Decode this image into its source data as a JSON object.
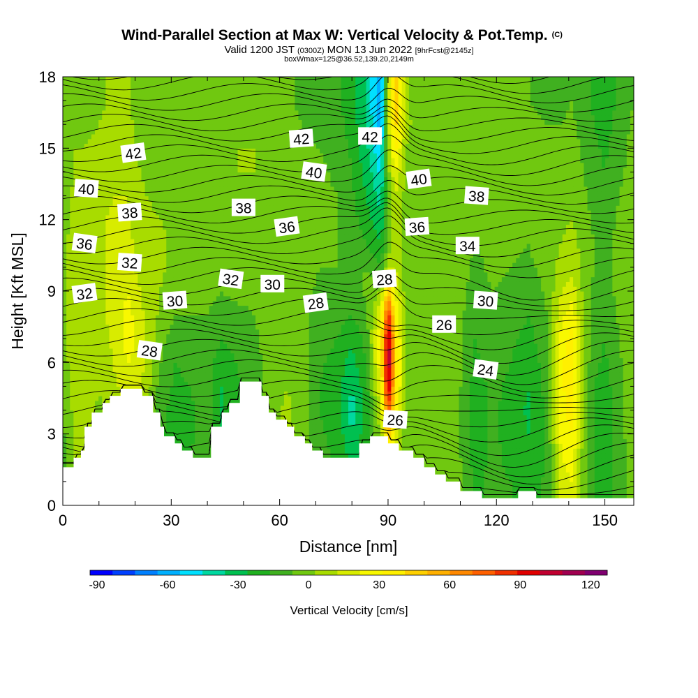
{
  "chart_data": {
    "type": "heatmap",
    "title": "Wind-Parallel Section at Max W: Vertical Velocity & Pot.Temp.",
    "title_note": "(C)",
    "subtitle_parts": [
      "Valid 1200 JST ",
      "(0300Z)",
      " MON 13 Jun 2022 ",
      "[9hrFcst@2145z]"
    ],
    "subtitle2": "boxWmax=125@36.52,139.20,2149m",
    "xlabel": "Distance [nm]",
    "ylabel": "Height [Kft MSL]",
    "xlim": [
      0,
      158
    ],
    "ylim": [
      0,
      18
    ],
    "x_ticks": [
      0,
      30,
      60,
      90,
      120,
      150
    ],
    "y_ticks": [
      0,
      3,
      6,
      9,
      12,
      15,
      18
    ],
    "colorbar": {
      "label": "Vertical Velocity [cm/s]",
      "range": [
        -90,
        130
      ],
      "step": 10,
      "tick_labels": [
        -90,
        -60,
        -30,
        0,
        30,
        60,
        90,
        120
      ],
      "colors": [
        "#0000ff",
        "#0040ff",
        "#0080ff",
        "#00b0ff",
        "#00e0ff",
        "#00d8a0",
        "#00c050",
        "#20b020",
        "#40b020",
        "#70c810",
        "#a8dc00",
        "#d8ec00",
        "#f8f800",
        "#fff000",
        "#ffd000",
        "#ffb000",
        "#ff8800",
        "#ff6000",
        "#f03000",
        "#e00000",
        "#c00030",
        "#a00050",
        "#800070"
      ]
    },
    "theta_contour_labels": [
      {
        "v": 42,
        "x": 19.5,
        "y": 14.8
      },
      {
        "v": 42,
        "x": 66,
        "y": 15.4
      },
      {
        "v": 42,
        "x": 85,
        "y": 15.5
      },
      {
        "v": 40,
        "x": 6.5,
        "y": 13.3
      },
      {
        "v": 40,
        "x": 69.5,
        "y": 14.0
      },
      {
        "v": 40,
        "x": 98.5,
        "y": 13.7
      },
      {
        "v": 38,
        "x": 18.5,
        "y": 12.3
      },
      {
        "v": 38,
        "x": 50,
        "y": 12.5
      },
      {
        "v": 38,
        "x": 114.5,
        "y": 13.0
      },
      {
        "v": 36,
        "x": 6,
        "y": 11.0
      },
      {
        "v": 36,
        "x": 62,
        "y": 11.7
      },
      {
        "v": 36,
        "x": 98,
        "y": 11.7
      },
      {
        "v": 34,
        "x": 112,
        "y": 10.9
      },
      {
        "v": 32,
        "x": 18.5,
        "y": 10.2
      },
      {
        "v": 32,
        "x": 46.5,
        "y": 9.5
      },
      {
        "v": 32,
        "x": 6,
        "y": 8.9
      },
      {
        "v": 30,
        "x": 31,
        "y": 8.6
      },
      {
        "v": 30,
        "x": 58,
        "y": 9.3
      },
      {
        "v": 30,
        "x": 117,
        "y": 8.6
      },
      {
        "v": 28,
        "x": 24,
        "y": 6.5
      },
      {
        "v": 28,
        "x": 70,
        "y": 8.5
      },
      {
        "v": 28,
        "x": 89,
        "y": 9.5
      },
      {
        "v": 26,
        "x": 105.5,
        "y": 7.6
      },
      {
        "v": 26,
        "x": 92,
        "y": 3.6
      },
      {
        "v": 24,
        "x": 117,
        "y": 5.7
      }
    ],
    "terrain_kft": [
      [
        0,
        1.6
      ],
      [
        3,
        1.6
      ],
      [
        3,
        2.0
      ],
      [
        5,
        2.0
      ],
      [
        5,
        2.3
      ],
      [
        6,
        2.3
      ],
      [
        6,
        3.3
      ],
      [
        8,
        3.3
      ],
      [
        8,
        3.9
      ],
      [
        11,
        3.9
      ],
      [
        11,
        4.3
      ],
      [
        13,
        4.3
      ],
      [
        13,
        4.6
      ],
      [
        16,
        4.6
      ],
      [
        16,
        4.9
      ],
      [
        22,
        4.9
      ],
      [
        22,
        4.6
      ],
      [
        25,
        4.6
      ],
      [
        25,
        3.9
      ],
      [
        27,
        3.9
      ],
      [
        27,
        3.3
      ],
      [
        28,
        3.3
      ],
      [
        28,
        2.9
      ],
      [
        31,
        2.9
      ],
      [
        31,
        2.6
      ],
      [
        33,
        2.6
      ],
      [
        33,
        2.3
      ],
      [
        36,
        2.3
      ],
      [
        36,
        2.0
      ],
      [
        41,
        2.0
      ],
      [
        41,
        3.3
      ],
      [
        44,
        3.3
      ],
      [
        44,
        3.9
      ],
      [
        46,
        3.9
      ],
      [
        46,
        4.3
      ],
      [
        49,
        4.3
      ],
      [
        49,
        5.2
      ],
      [
        55,
        5.2
      ],
      [
        55,
        4.6
      ],
      [
        57,
        4.6
      ],
      [
        57,
        3.9
      ],
      [
        59,
        3.9
      ],
      [
        59,
        3.6
      ],
      [
        62,
        3.6
      ],
      [
        62,
        3.3
      ],
      [
        64,
        3.3
      ],
      [
        64,
        2.9
      ],
      [
        67,
        2.9
      ],
      [
        67,
        2.6
      ],
      [
        69,
        2.6
      ],
      [
        69,
        2.3
      ],
      [
        72,
        2.3
      ],
      [
        72,
        2.0
      ],
      [
        82,
        2.0
      ],
      [
        82,
        2.6
      ],
      [
        85,
        2.6
      ],
      [
        85,
        2.9
      ],
      [
        90,
        2.9
      ],
      [
        90,
        2.6
      ],
      [
        93,
        2.6
      ],
      [
        93,
        2.3
      ],
      [
        97,
        2.3
      ],
      [
        97,
        2.0
      ],
      [
        100,
        2.0
      ],
      [
        100,
        1.6
      ],
      [
        103,
        1.6
      ],
      [
        103,
        1.3
      ],
      [
        106,
        1.3
      ],
      [
        106,
        1.0
      ],
      [
        110,
        1.0
      ],
      [
        110,
        0.6
      ],
      [
        116,
        0.6
      ],
      [
        116,
        0.3
      ],
      [
        126,
        0.3
      ],
      [
        126,
        0.6
      ],
      [
        131,
        0.6
      ],
      [
        131,
        0.3
      ],
      [
        158,
        0.3
      ]
    ],
    "w_field_cm_s": {
      "x": [
        0,
        3,
        6,
        10,
        14,
        18,
        20,
        23,
        27,
        31,
        35,
        40,
        44,
        48,
        53,
        57,
        62,
        66,
        71,
        76,
        80,
        84,
        88,
        90,
        92,
        95,
        99,
        104,
        109,
        114,
        119,
        124,
        129,
        134,
        138,
        141,
        144,
        147,
        150,
        154,
        158
      ],
      "y": [
        0,
        1,
        2,
        3,
        4,
        5,
        6,
        7,
        8,
        9,
        10,
        11,
        12,
        13,
        14,
        15,
        16,
        17,
        18
      ],
      "values": [
        [
          -5,
          8,
          12,
          4,
          10,
          14,
          18,
          8,
          -8,
          -15,
          -10,
          -4,
          -16,
          -8,
          -3,
          5,
          10,
          8,
          -5,
          -12,
          -20,
          -10,
          5,
          20,
          10,
          2,
          4,
          8,
          4,
          -12,
          -8,
          -10,
          -16,
          -8,
          25,
          30,
          5,
          -12,
          -16,
          -6,
          8
        ],
        [
          -5,
          8,
          12,
          4,
          10,
          14,
          18,
          8,
          -8,
          -15,
          -10,
          -4,
          -16,
          -8,
          -3,
          5,
          10,
          8,
          -5,
          -12,
          -20,
          -10,
          5,
          20,
          10,
          2,
          4,
          8,
          4,
          -12,
          -8,
          -10,
          -16,
          -8,
          25,
          30,
          5,
          -12,
          -16,
          -6,
          8
        ],
        [
          -4,
          10,
          14,
          5,
          12,
          16,
          20,
          10,
          -8,
          -16,
          -10,
          -4,
          -18,
          -10,
          -4,
          6,
          12,
          8,
          -6,
          -12,
          -24,
          -12,
          6,
          40,
          20,
          2,
          4,
          8,
          4,
          -14,
          -8,
          -12,
          -18,
          -8,
          30,
          35,
          6,
          -12,
          -16,
          -6,
          8
        ],
        [
          -2,
          10,
          14,
          6,
          14,
          18,
          22,
          12,
          -8,
          -16,
          -12,
          -6,
          -20,
          -10,
          -4,
          6,
          12,
          8,
          -8,
          -14,
          -30,
          -14,
          10,
          60,
          30,
          2,
          4,
          8,
          4,
          -16,
          -8,
          -14,
          -20,
          -8,
          34,
          40,
          8,
          -12,
          -16,
          -6,
          10
        ],
        [
          0,
          12,
          16,
          8,
          16,
          20,
          24,
          14,
          -6,
          -14,
          -12,
          -6,
          -22,
          -12,
          -4,
          6,
          12,
          6,
          -10,
          -16,
          -35,
          -16,
          20,
          90,
          40,
          4,
          4,
          8,
          4,
          -16,
          -8,
          -14,
          -22,
          -8,
          36,
          45,
          8,
          -12,
          -16,
          -4,
          10
        ],
        [
          2,
          14,
          16,
          10,
          18,
          24,
          26,
          16,
          -4,
          -12,
          -10,
          -6,
          -20,
          -12,
          -4,
          4,
          10,
          6,
          -10,
          -16,
          -30,
          -14,
          30,
          115,
          50,
          4,
          4,
          8,
          4,
          -14,
          -8,
          -12,
          -20,
          -6,
          38,
          48,
          10,
          -10,
          -14,
          -4,
          10
        ],
        [
          4,
          16,
          18,
          12,
          20,
          30,
          28,
          18,
          0,
          -10,
          -8,
          -6,
          -16,
          -10,
          -4,
          4,
          10,
          4,
          -8,
          -14,
          -25,
          -10,
          40,
          125,
          55,
          4,
          4,
          6,
          4,
          -12,
          -6,
          -10,
          -18,
          -4,
          38,
          48,
          10,
          -8,
          -12,
          -2,
          10
        ],
        [
          6,
          18,
          18,
          14,
          22,
          34,
          30,
          20,
          4,
          -6,
          -4,
          -4,
          -10,
          -6,
          -2,
          4,
          8,
          4,
          -6,
          -10,
          -18,
          -6,
          40,
          120,
          50,
          4,
          4,
          6,
          4,
          -10,
          -4,
          -8,
          -14,
          -2,
          34,
          44,
          10,
          -6,
          -10,
          0,
          10
        ],
        [
          8,
          18,
          20,
          16,
          24,
          34,
          28,
          18,
          8,
          0,
          0,
          0,
          -4,
          -2,
          0,
          4,
          8,
          4,
          -4,
          -6,
          -10,
          -2,
          30,
          100,
          40,
          4,
          4,
          6,
          4,
          -6,
          -2,
          -4,
          -10,
          0,
          28,
          36,
          8,
          -4,
          -8,
          2,
          10
        ],
        [
          8,
          16,
          20,
          18,
          24,
          30,
          24,
          16,
          10,
          4,
          4,
          2,
          0,
          2,
          2,
          4,
          6,
          4,
          -2,
          -2,
          -4,
          2,
          10,
          60,
          30,
          4,
          4,
          6,
          4,
          -4,
          0,
          -2,
          -6,
          2,
          20,
          26,
          8,
          -2,
          -6,
          4,
          10
        ],
        [
          8,
          14,
          20,
          18,
          22,
          26,
          20,
          14,
          12,
          6,
          6,
          4,
          2,
          4,
          4,
          6,
          6,
          4,
          0,
          0,
          -2,
          0,
          -8,
          20,
          20,
          4,
          6,
          8,
          6,
          -2,
          2,
          0,
          -2,
          4,
          14,
          18,
          6,
          0,
          -4,
          4,
          10
        ],
        [
          8,
          14,
          18,
          18,
          22,
          24,
          18,
          14,
          12,
          8,
          8,
          6,
          4,
          6,
          6,
          6,
          8,
          4,
          0,
          0,
          -4,
          -10,
          -20,
          0,
          15,
          4,
          6,
          8,
          6,
          0,
          2,
          2,
          0,
          6,
          10,
          14,
          6,
          0,
          -4,
          4,
          8
        ],
        [
          6,
          12,
          16,
          18,
          22,
          22,
          16,
          12,
          10,
          8,
          8,
          8,
          6,
          8,
          8,
          8,
          8,
          4,
          2,
          0,
          -6,
          -16,
          -28,
          0,
          15,
          4,
          6,
          8,
          6,
          2,
          4,
          4,
          2,
          6,
          8,
          10,
          4,
          -2,
          -6,
          2,
          6
        ],
        [
          6,
          12,
          14,
          16,
          20,
          20,
          14,
          10,
          8,
          8,
          10,
          8,
          6,
          8,
          8,
          8,
          6,
          4,
          2,
          0,
          -8,
          -20,
          -35,
          0,
          20,
          6,
          6,
          6,
          6,
          4,
          4,
          6,
          4,
          6,
          6,
          8,
          2,
          -4,
          -8,
          0,
          6
        ],
        [
          4,
          10,
          12,
          14,
          18,
          18,
          12,
          8,
          6,
          6,
          8,
          8,
          8,
          10,
          10,
          8,
          6,
          4,
          2,
          -2,
          -10,
          -24,
          -42,
          5,
          30,
          8,
          6,
          6,
          6,
          4,
          4,
          6,
          4,
          4,
          4,
          6,
          0,
          -6,
          -10,
          -2,
          4
        ],
        [
          4,
          10,
          10,
          12,
          16,
          16,
          10,
          6,
          4,
          6,
          8,
          8,
          8,
          10,
          10,
          8,
          6,
          2,
          0,
          -4,
          -12,
          -28,
          -50,
          10,
          45,
          10,
          6,
          6,
          6,
          4,
          4,
          4,
          4,
          2,
          2,
          4,
          -2,
          -8,
          -12,
          -4,
          4
        ],
        [
          2,
          8,
          8,
          10,
          14,
          14,
          8,
          4,
          2,
          4,
          6,
          6,
          8,
          8,
          8,
          6,
          4,
          0,
          -2,
          -6,
          -14,
          -30,
          -55,
          15,
          55,
          12,
          6,
          4,
          4,
          2,
          2,
          2,
          2,
          0,
          0,
          2,
          -4,
          -10,
          -14,
          -6,
          2
        ],
        [
          0,
          6,
          6,
          8,
          12,
          12,
          6,
          2,
          0,
          2,
          4,
          4,
          6,
          6,
          6,
          4,
          2,
          -2,
          -4,
          -8,
          -16,
          -32,
          -60,
          20,
          60,
          12,
          4,
          2,
          2,
          0,
          0,
          0,
          0,
          -2,
          -2,
          0,
          -6,
          -12,
          -16,
          -8,
          0
        ],
        [
          0,
          6,
          6,
          8,
          12,
          12,
          6,
          2,
          0,
          2,
          4,
          4,
          6,
          6,
          6,
          4,
          2,
          -2,
          -4,
          -8,
          -16,
          -32,
          -60,
          20,
          60,
          12,
          4,
          2,
          2,
          0,
          0,
          0,
          0,
          -2,
          -2,
          0,
          -6,
          -12,
          -16,
          -8,
          0
        ]
      ]
    }
  }
}
